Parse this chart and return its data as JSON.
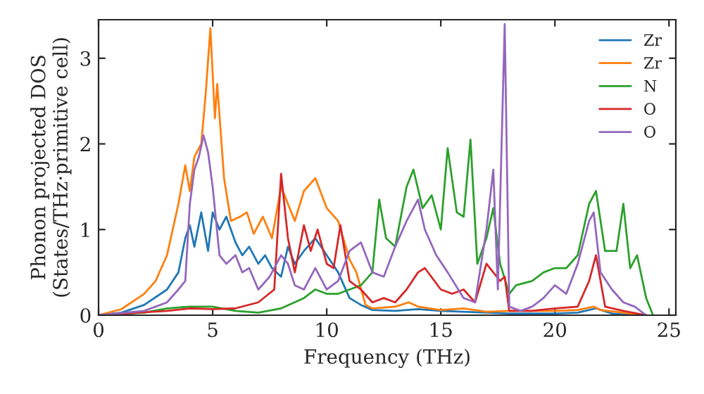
{
  "chart_data": {
    "type": "line",
    "xlabel": "Frequency (THz)",
    "ylabel": "Phonon projected DOS\n(States/THz·primitive cell)",
    "xlim": [
      0,
      25.3
    ],
    "ylim": [
      0,
      3.45
    ],
    "xticks": [
      0,
      5,
      10,
      15,
      20,
      25
    ],
    "yticks": [
      0,
      1,
      2,
      3
    ],
    "grid": false,
    "legend": "top right",
    "series": [
      {
        "name": "Zr",
        "color": "#1f77b4",
        "x": [
          0,
          1,
          2,
          3,
          3.5,
          3.8,
          4.0,
          4.2,
          4.5,
          4.8,
          5.0,
          5.3,
          5.6,
          6.0,
          6.3,
          6.6,
          7.0,
          7.3,
          7.6,
          8.0,
          8.3,
          8.6,
          9.0,
          9.5,
          10,
          10.5,
          11,
          11.5,
          12,
          13,
          14,
          15,
          16,
          17,
          18,
          19,
          20,
          21,
          21.8,
          22.5,
          23,
          24
        ],
        "values": [
          0,
          0.03,
          0.12,
          0.3,
          0.5,
          0.9,
          1.05,
          0.8,
          1.2,
          0.75,
          1.2,
          1.0,
          1.15,
          0.85,
          0.7,
          0.8,
          0.6,
          0.7,
          0.55,
          0.45,
          0.8,
          0.6,
          0.75,
          0.9,
          0.7,
          0.5,
          0.2,
          0.12,
          0.06,
          0.05,
          0.07,
          0.05,
          0.04,
          0.03,
          0.02,
          0.02,
          0.02,
          0.03,
          0.08,
          0.02,
          0.01,
          0
        ]
      },
      {
        "name": "Zr",
        "color": "#ff7f0e",
        "x": [
          0,
          1,
          2,
          2.5,
          3,
          3.5,
          3.8,
          4.0,
          4.2,
          4.5,
          4.7,
          4.9,
          5.1,
          5.2,
          5.5,
          5.8,
          6.2,
          6.5,
          6.8,
          7.2,
          7.6,
          8.0,
          8.3,
          8.6,
          9.0,
          9.5,
          10,
          10.5,
          11,
          11.3,
          11.7,
          12,
          13,
          13.6,
          14,
          15,
          16,
          17,
          18,
          19,
          20,
          21,
          21.7,
          22,
          23,
          24
        ],
        "values": [
          0,
          0.07,
          0.25,
          0.4,
          0.7,
          1.3,
          1.75,
          1.45,
          1.85,
          2.0,
          2.6,
          3.35,
          2.3,
          2.7,
          1.6,
          1.1,
          1.15,
          1.2,
          0.95,
          1.15,
          0.9,
          1.5,
          1.3,
          1.1,
          1.45,
          1.6,
          1.25,
          1.1,
          0.65,
          0.5,
          0.12,
          0.08,
          0.1,
          0.15,
          0.1,
          0.06,
          0.08,
          0.04,
          0.05,
          0.05,
          0.05,
          0.06,
          0.1,
          0.06,
          0.03,
          0
        ]
      },
      {
        "name": "N",
        "color": "#2ca02c",
        "x": [
          0,
          2,
          3,
          4,
          5,
          6,
          7,
          8,
          9,
          9.5,
          10,
          10.5,
          11,
          11.5,
          12,
          12.3,
          12.6,
          13,
          13.5,
          13.8,
          14.2,
          14.6,
          15,
          15.3,
          15.7,
          16,
          16.3,
          16.6,
          17,
          17.3,
          17.6,
          18,
          18.3,
          19,
          19.5,
          20,
          20.5,
          21,
          21.5,
          21.8,
          22.2,
          22.7,
          23,
          23.3,
          23.6,
          24,
          24.3
        ],
        "values": [
          0,
          0.03,
          0.08,
          0.1,
          0.1,
          0.05,
          0.03,
          0.08,
          0.2,
          0.3,
          0.25,
          0.25,
          0.3,
          0.35,
          0.5,
          1.35,
          0.9,
          0.8,
          1.5,
          1.7,
          1.25,
          1.4,
          1.0,
          1.95,
          1.2,
          1.15,
          2.05,
          0.6,
          0.9,
          1.25,
          0.6,
          0.25,
          0.35,
          0.4,
          0.5,
          0.55,
          0.55,
          0.7,
          1.3,
          1.45,
          0.75,
          0.75,
          1.3,
          0.55,
          0.7,
          0.2,
          0
        ]
      },
      {
        "name": "O",
        "color": "#d62728",
        "x": [
          0,
          3,
          4,
          5,
          6,
          7,
          7.7,
          8,
          8.3,
          8.6,
          9,
          9.3,
          9.6,
          10,
          10.3,
          10.6,
          11,
          11.5,
          12,
          12.5,
          13,
          13.5,
          14,
          14.3,
          15,
          15.5,
          16,
          16.5,
          17,
          17.3,
          17.6,
          17.8,
          18,
          19,
          20,
          21,
          21.5,
          21.8,
          22.2,
          23,
          24
        ],
        "values": [
          0,
          0.05,
          0.08,
          0.07,
          0.08,
          0.15,
          0.3,
          1.65,
          0.9,
          0.5,
          1.05,
          0.75,
          1.0,
          0.6,
          0.55,
          1.05,
          0.4,
          0.3,
          0.15,
          0.2,
          0.15,
          0.3,
          0.5,
          0.55,
          0.3,
          0.25,
          0.3,
          0.15,
          0.6,
          0.5,
          0.4,
          0.45,
          0.05,
          0.05,
          0.08,
          0.1,
          0.4,
          0.7,
          0.1,
          0.05,
          0
        ]
      },
      {
        "name": "O",
        "color": "#9467bd",
        "x": [
          0,
          2,
          3,
          3.5,
          3.8,
          4.0,
          4.2,
          4.4,
          4.6,
          4.8,
          5.0,
          5.3,
          5.6,
          6,
          6.3,
          6.6,
          7.0,
          7.5,
          8,
          8.3,
          8.6,
          9,
          9.5,
          10,
          10.5,
          11,
          11.5,
          12,
          12.5,
          13,
          13.5,
          14,
          14.3,
          14.8,
          15.3,
          16,
          16.5,
          17,
          17.3,
          17.5,
          17.8,
          18.0,
          18.5,
          19,
          19.5,
          20,
          20.5,
          21,
          21.5,
          21.7,
          22,
          22.5,
          23,
          23.5,
          24
        ],
        "values": [
          0,
          0.05,
          0.15,
          0.3,
          0.4,
          1.3,
          1.7,
          1.85,
          2.1,
          1.9,
          1.5,
          0.7,
          0.6,
          0.7,
          0.5,
          0.55,
          0.3,
          0.45,
          0.7,
          0.6,
          0.35,
          0.3,
          0.55,
          0.3,
          0.4,
          0.75,
          0.85,
          0.5,
          0.45,
          0.8,
          1.1,
          1.35,
          1.0,
          0.7,
          0.5,
          0.2,
          0.15,
          1.0,
          1.7,
          0.3,
          3.4,
          0.1,
          0.05,
          0.1,
          0.2,
          0.35,
          0.25,
          0.6,
          1.1,
          1.2,
          0.5,
          0.3,
          0.15,
          0.1,
          0
        ]
      }
    ]
  }
}
